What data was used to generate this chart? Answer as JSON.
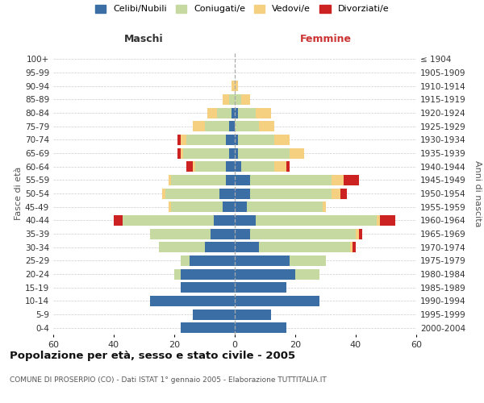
{
  "age_groups": [
    "0-4",
    "5-9",
    "10-14",
    "15-19",
    "20-24",
    "25-29",
    "30-34",
    "35-39",
    "40-44",
    "45-49",
    "50-54",
    "55-59",
    "60-64",
    "65-69",
    "70-74",
    "75-79",
    "80-84",
    "85-89",
    "90-94",
    "95-99",
    "100+"
  ],
  "birth_years": [
    "2000-2004",
    "1995-1999",
    "1990-1994",
    "1985-1989",
    "1980-1984",
    "1975-1979",
    "1970-1974",
    "1965-1969",
    "1960-1964",
    "1955-1959",
    "1950-1954",
    "1945-1949",
    "1940-1944",
    "1935-1939",
    "1930-1934",
    "1925-1929",
    "1920-1924",
    "1915-1919",
    "1910-1914",
    "1905-1909",
    "≤ 1904"
  ],
  "colors": {
    "celibi": "#3a6ea5",
    "coniugati": "#c5d9a0",
    "vedovi": "#f5d080",
    "divorziati": "#cc2222"
  },
  "male": {
    "celibi": [
      18,
      14,
      28,
      18,
      18,
      15,
      10,
      8,
      7,
      4,
      5,
      3,
      3,
      2,
      3,
      2,
      1,
      0,
      0,
      0,
      0
    ],
    "coniugati": [
      0,
      0,
      0,
      0,
      2,
      3,
      15,
      20,
      30,
      17,
      18,
      18,
      10,
      15,
      13,
      8,
      5,
      2,
      0,
      0,
      0
    ],
    "vedovi": [
      0,
      0,
      0,
      0,
      0,
      0,
      0,
      0,
      0,
      1,
      1,
      1,
      1,
      1,
      2,
      4,
      3,
      2,
      1,
      0,
      0
    ],
    "divorziati": [
      0,
      0,
      0,
      0,
      0,
      0,
      0,
      0,
      3,
      0,
      0,
      0,
      2,
      1,
      1,
      0,
      0,
      0,
      0,
      0,
      0
    ]
  },
  "female": {
    "celibi": [
      17,
      12,
      28,
      17,
      20,
      18,
      8,
      5,
      7,
      4,
      5,
      5,
      2,
      1,
      1,
      0,
      1,
      0,
      0,
      0,
      0
    ],
    "coniugati": [
      0,
      0,
      0,
      0,
      8,
      12,
      30,
      35,
      40,
      25,
      27,
      27,
      11,
      17,
      12,
      8,
      6,
      2,
      0,
      0,
      0
    ],
    "vedovi": [
      0,
      0,
      0,
      0,
      0,
      0,
      1,
      1,
      1,
      1,
      3,
      4,
      4,
      5,
      5,
      5,
      5,
      3,
      1,
      0,
      0
    ],
    "divorziati": [
      0,
      0,
      0,
      0,
      0,
      0,
      1,
      1,
      5,
      0,
      2,
      5,
      1,
      0,
      0,
      0,
      0,
      0,
      0,
      0,
      0
    ]
  },
  "xlim": 60,
  "title": "Popolazione per età, sesso e stato civile - 2005",
  "subtitle": "COMUNE DI PROSERPIO (CO) - Dati ISTAT 1° gennaio 2005 - Elaborazione TUTTITALIA.IT",
  "ylabel_left": "Fasce di età",
  "ylabel_right": "Anni di nascita",
  "xlabel_left": "Maschi",
  "xlabel_right": "Femmine",
  "legend_labels": [
    "Celibi/Nubili",
    "Coniugati/e",
    "Vedovi/e",
    "Divorziati/e"
  ],
  "bg_color": "#ffffff",
  "grid_color": "#cccccc"
}
